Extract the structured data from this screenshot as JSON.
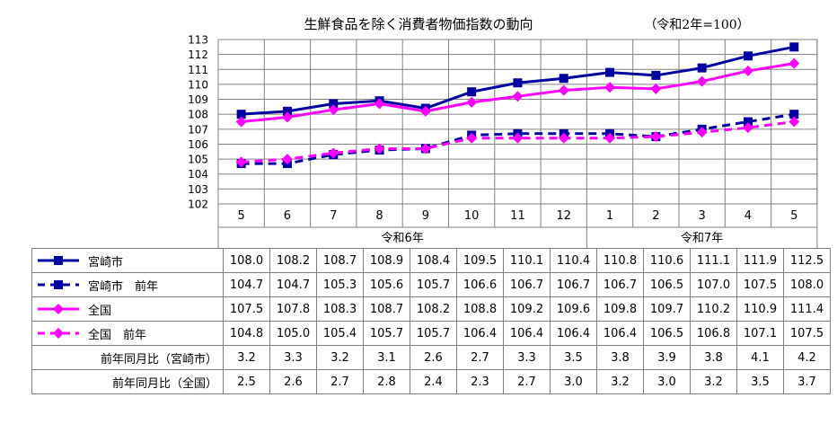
{
  "chart_data": {
    "type": "line",
    "title": "生鮮食品を除く消費者物価指数の動向",
    "subtitle": "（令和2年=100）",
    "categories": [
      "5",
      "6",
      "7",
      "8",
      "9",
      "10",
      "11",
      "12",
      "1",
      "2",
      "3",
      "4",
      "5"
    ],
    "year_groups": [
      {
        "label": "令和6年",
        "count": 8
      },
      {
        "label": "令和7年",
        "count": 5
      }
    ],
    "ylim": [
      102,
      113
    ],
    "yticks": [
      "102",
      "103",
      "104",
      "105",
      "106",
      "107",
      "108",
      "109",
      "110",
      "111",
      "112",
      "113"
    ],
    "grid": true,
    "series": [
      {
        "name": "宮崎市",
        "color": "#0000a0",
        "style": "solid",
        "marker": "square",
        "values": [
          108.0,
          108.2,
          108.7,
          108.9,
          108.4,
          109.5,
          110.1,
          110.4,
          110.8,
          110.6,
          111.1,
          111.9,
          112.5
        ]
      },
      {
        "name": "宮崎市　前年",
        "color": "#0000a0",
        "style": "dashed",
        "marker": "square",
        "values": [
          104.7,
          104.7,
          105.3,
          105.6,
          105.7,
          106.6,
          106.7,
          106.7,
          106.7,
          106.5,
          107.0,
          107.5,
          108.0
        ]
      },
      {
        "name": "全国",
        "color": "#ff00ff",
        "style": "solid",
        "marker": "diamond",
        "values": [
          107.5,
          107.8,
          108.3,
          108.7,
          108.2,
          108.8,
          109.2,
          109.6,
          109.8,
          109.7,
          110.2,
          110.9,
          111.4
        ]
      },
      {
        "name": "全国　前年",
        "color": "#ff00ff",
        "style": "dashed",
        "marker": "diamond",
        "values": [
          104.8,
          105.0,
          105.4,
          105.7,
          105.7,
          106.4,
          106.4,
          106.4,
          106.4,
          106.5,
          106.8,
          107.1,
          107.5
        ]
      }
    ],
    "value_rows": [
      {
        "label": "宮崎市",
        "series": 0,
        "values": [
          "108.0",
          "108.2",
          "108.7",
          "108.9",
          "108.4",
          "109.5",
          "110.1",
          "110.4",
          "110.8",
          "110.6",
          "111.1",
          "111.9",
          "112.5"
        ]
      },
      {
        "label": "宮崎市　前年",
        "series": 1,
        "values": [
          "104.7",
          "104.7",
          "105.3",
          "105.6",
          "105.7",
          "106.6",
          "106.7",
          "106.7",
          "106.7",
          "106.5",
          "107.0",
          "107.5",
          "108.0"
        ]
      },
      {
        "label": "全国",
        "series": 2,
        "values": [
          "107.5",
          "107.8",
          "108.3",
          "108.7",
          "108.2",
          "108.8",
          "109.2",
          "109.6",
          "109.8",
          "109.7",
          "110.2",
          "110.9",
          "111.4"
        ]
      },
      {
        "label": "全国　前年",
        "series": 3,
        "values": [
          "104.8",
          "105.0",
          "105.4",
          "105.7",
          "105.7",
          "106.4",
          "106.4",
          "106.4",
          "106.4",
          "106.5",
          "106.8",
          "107.1",
          "107.5"
        ]
      },
      {
        "label": "前年同月比（宮崎市）",
        "series": null,
        "values": [
          "3.2",
          "3.3",
          "3.2",
          "3.1",
          "2.6",
          "2.7",
          "3.3",
          "3.5",
          "3.8",
          "3.9",
          "3.8",
          "4.1",
          "4.2"
        ]
      },
      {
        "label": "前年同月比（全国）",
        "series": null,
        "values": [
          "2.5",
          "2.6",
          "2.7",
          "2.8",
          "2.4",
          "2.3",
          "2.7",
          "3.0",
          "3.2",
          "3.0",
          "3.2",
          "3.5",
          "3.7"
        ]
      }
    ]
  }
}
